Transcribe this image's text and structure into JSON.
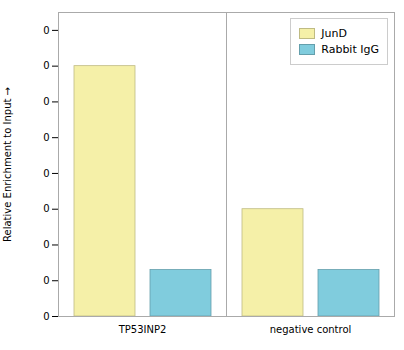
{
  "chart_data": {
    "type": "bar",
    "categories": [
      "TP53INP2",
      "negative control"
    ],
    "series": [
      {
        "name": "JunD",
        "color": "#F5F0A8",
        "values": [
          0.07,
          0.03
        ]
      },
      {
        "name": "Rabbit IgG",
        "color": "#80CCDD",
        "values": [
          0.013,
          0.013
        ]
      }
    ],
    "ylabel": "Relative Enrichment to Input",
    "ylim": [
      0,
      0.085
    ],
    "yticks": [
      0,
      {
        "value": 0.01,
        "label": "0"
      },
      {
        "value": 0.02,
        "label": "0"
      },
      {
        "value": 0.03,
        "label": "0"
      },
      {
        "value": 0.04,
        "label": "0"
      },
      {
        "value": 0.05,
        "label": "0"
      },
      {
        "value": 0.06,
        "label": "0"
      },
      {
        "value": 0.07,
        "label": "0"
      },
      {
        "value": 0.08,
        "label": "0"
      }
    ],
    "legend": "upper right"
  }
}
